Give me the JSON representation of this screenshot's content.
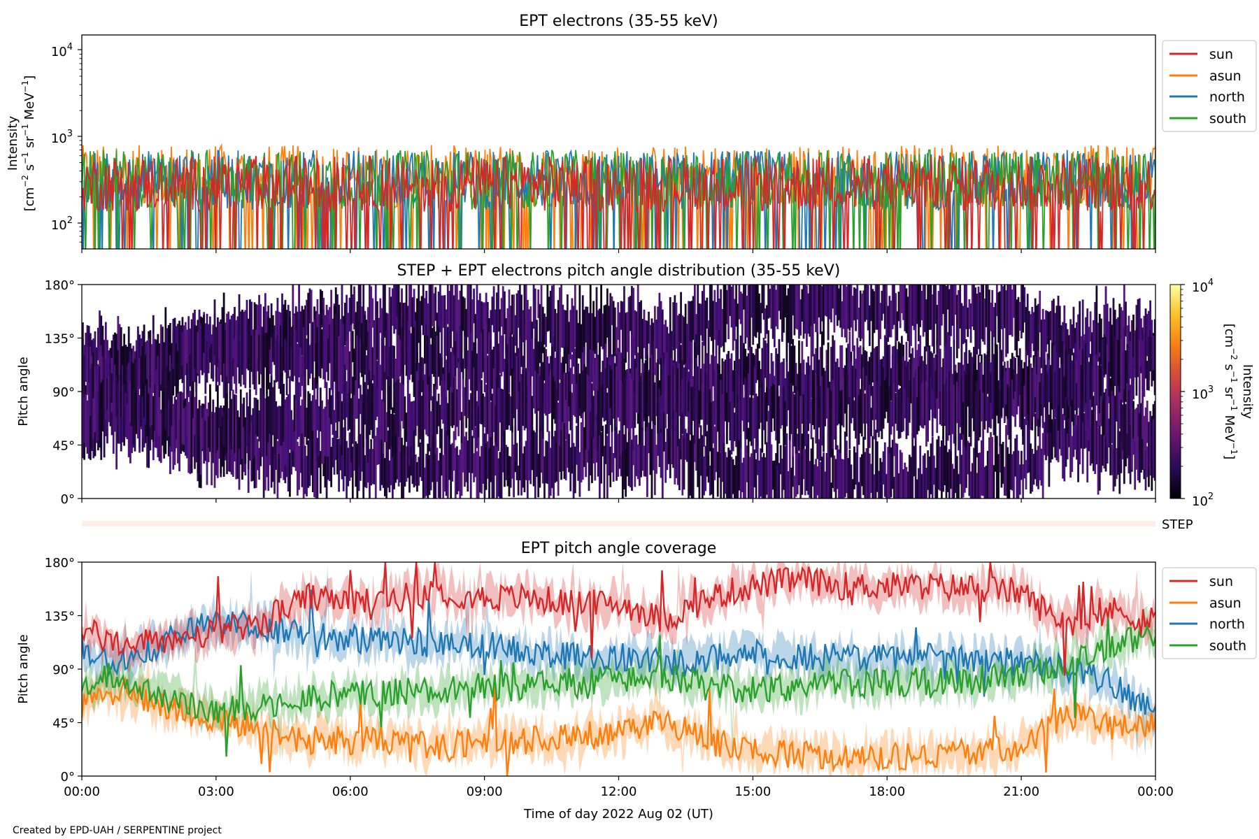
{
  "credit": "Created by EPD-UAH / SERPENTINE project",
  "xlabel": "Time of day 2022 Aug 02 (UT)",
  "x_ticks": [
    "00:00",
    "03:00",
    "06:00",
    "09:00",
    "12:00",
    "15:00",
    "18:00",
    "21:00",
    "00:00"
  ],
  "chart_data": [
    {
      "type": "line",
      "title": "EPT electrons (35-55 keV)",
      "ylabel": "Intensity",
      "yunit_parts": [
        "[cm",
        "−2",
        " s",
        "−1",
        " sr",
        "−1",
        " MeV",
        "−1",
        "]"
      ],
      "yscale": "log",
      "ylim": [
        50,
        15000
      ],
      "y_ticks": [
        {
          "base": "10",
          "exp": "2",
          "value": 100
        },
        {
          "base": "10",
          "exp": "3",
          "value": 1000
        },
        {
          "base": "10",
          "exp": "4",
          "value": 10000
        }
      ],
      "xlim": [
        0,
        24
      ],
      "x_unit": "hours UT",
      "legend_position": "outside-right",
      "series": [
        {
          "name": "sun",
          "color": "#d62728",
          "typical_range": [
            60,
            600
          ]
        },
        {
          "name": "asun",
          "color": "#ff7f0e",
          "typical_range": [
            60,
            800
          ]
        },
        {
          "name": "north",
          "color": "#1f77b4",
          "typical_range": [
            60,
            700
          ]
        },
        {
          "name": "south",
          "color": "#2ca02c",
          "typical_range": [
            60,
            700
          ]
        }
      ]
    },
    {
      "type": "heatmap",
      "title": "STEP + EPT electrons pitch angle distribution (35-55 keV)",
      "ylabel": "Pitch angle",
      "y_ticks": [
        "0°",
        "45°",
        "90°",
        "135°",
        "180°"
      ],
      "ylim": [
        0,
        180
      ],
      "xlim": [
        0,
        24
      ],
      "colormap": "inferno",
      "colorbar": {
        "label": "Intensity",
        "unit_parts": [
          "[cm",
          "−2",
          " s",
          "−1",
          " sr",
          "−1",
          " MeV",
          "−1",
          "]"
        ],
        "ticks": [
          {
            "base": "10",
            "exp": "2"
          },
          {
            "base": "10",
            "exp": "3"
          },
          {
            "base": "10",
            "exp": "4"
          }
        ],
        "range": [
          100,
          10000
        ],
        "colors": [
          "#000004",
          "#280b54",
          "#65156e",
          "#9f2a63",
          "#d44842",
          "#f57d15",
          "#fac228",
          "#fcffa4"
        ]
      },
      "step_label": "STEP"
    },
    {
      "type": "line",
      "title": "EPT pitch angle coverage",
      "ylabel": "Pitch angle",
      "y_ticks": [
        "0°",
        "45°",
        "90°",
        "135°",
        "180°"
      ],
      "ylim": [
        0,
        180
      ],
      "xlim": [
        0,
        24
      ],
      "legend_position": "outside-right",
      "series": [
        {
          "name": "sun",
          "color": "#d62728",
          "keyframes": [
            [
              0,
              125
            ],
            [
              0.5,
              115
            ],
            [
              1,
              110
            ],
            [
              2,
              115
            ],
            [
              3,
              120
            ],
            [
              4,
              130
            ],
            [
              4.5,
              140
            ],
            [
              5,
              150
            ],
            [
              6,
              145
            ],
            [
              7,
              150
            ],
            [
              8,
              155
            ],
            [
              9,
              150
            ],
            [
              10,
              150
            ],
            [
              11,
              145
            ],
            [
              12,
              145
            ],
            [
              12.5,
              140
            ],
            [
              13,
              130
            ],
            [
              13.5,
              140
            ],
            [
              14,
              150
            ],
            [
              15,
              160
            ],
            [
              16,
              165
            ],
            [
              16.2,
              165
            ],
            [
              17,
              160
            ],
            [
              18,
              160
            ],
            [
              19,
              160
            ],
            [
              20,
              158
            ],
            [
              21,
              155
            ],
            [
              21.5,
              140
            ],
            [
              22,
              130
            ],
            [
              22.5,
              130
            ],
            [
              23,
              140
            ],
            [
              24,
              130
            ]
          ]
        },
        {
          "name": "asun",
          "color": "#ff7f0e",
          "keyframes": [
            [
              0,
              60
            ],
            [
              0.5,
              70
            ],
            [
              1,
              70
            ],
            [
              2,
              55
            ],
            [
              3,
              50
            ],
            [
              4,
              40
            ],
            [
              4.5,
              35
            ],
            [
              5,
              30
            ],
            [
              6,
              30
            ],
            [
              7,
              30
            ],
            [
              8,
              25
            ],
            [
              9,
              30
            ],
            [
              10,
              30
            ],
            [
              11,
              35
            ],
            [
              12,
              35
            ],
            [
              12.5,
              40
            ],
            [
              13,
              45
            ],
            [
              13.5,
              40
            ],
            [
              14,
              30
            ],
            [
              15,
              22
            ],
            [
              16,
              18
            ],
            [
              17,
              15
            ],
            [
              18,
              15
            ],
            [
              19,
              18
            ],
            [
              20,
              20
            ],
            [
              21,
              25
            ],
            [
              21.5,
              40
            ],
            [
              22,
              50
            ],
            [
              22.5,
              50
            ],
            [
              23,
              40
            ],
            [
              24,
              45
            ]
          ]
        },
        {
          "name": "north",
          "color": "#1f77b4",
          "keyframes": [
            [
              0,
              110
            ],
            [
              0.5,
              95
            ],
            [
              1,
              100
            ],
            [
              2,
              115
            ],
            [
              3,
              130
            ],
            [
              4,
              125
            ],
            [
              5,
              120
            ],
            [
              6,
              115
            ],
            [
              7,
              115
            ],
            [
              8,
              110
            ],
            [
              9,
              110
            ],
            [
              10,
              105
            ],
            [
              11,
              100
            ],
            [
              12,
              100
            ],
            [
              12.5,
              100
            ],
            [
              13,
              95
            ],
            [
              13.5,
              95
            ],
            [
              14,
              100
            ],
            [
              15,
              105
            ],
            [
              16,
              100
            ],
            [
              17,
              100
            ],
            [
              18,
              100
            ],
            [
              19,
              100
            ],
            [
              20,
              98
            ],
            [
              21,
              95
            ],
            [
              22,
              90
            ],
            [
              22.5,
              85
            ],
            [
              23,
              80
            ],
            [
              24,
              50
            ]
          ]
        },
        {
          "name": "south",
          "color": "#2ca02c",
          "keyframes": [
            [
              0,
              70
            ],
            [
              0.5,
              85
            ],
            [
              1,
              80
            ],
            [
              2,
              65
            ],
            [
              3,
              55
            ],
            [
              4,
              60
            ],
            [
              5,
              65
            ],
            [
              6,
              70
            ],
            [
              7,
              70
            ],
            [
              8,
              72
            ],
            [
              9,
              75
            ],
            [
              10,
              75
            ],
            [
              11,
              80
            ],
            [
              12,
              80
            ],
            [
              12.5,
              85
            ],
            [
              13,
              85
            ],
            [
              13.5,
              80
            ],
            [
              14,
              75
            ],
            [
              15,
              72
            ],
            [
              16,
              75
            ],
            [
              17,
              78
            ],
            [
              18,
              78
            ],
            [
              19,
              80
            ],
            [
              20,
              80
            ],
            [
              21,
              85
            ],
            [
              21.5,
              90
            ],
            [
              22,
              95
            ],
            [
              22.5,
              100
            ],
            [
              23,
              110
            ],
            [
              24,
              120
            ]
          ]
        }
      ]
    }
  ]
}
